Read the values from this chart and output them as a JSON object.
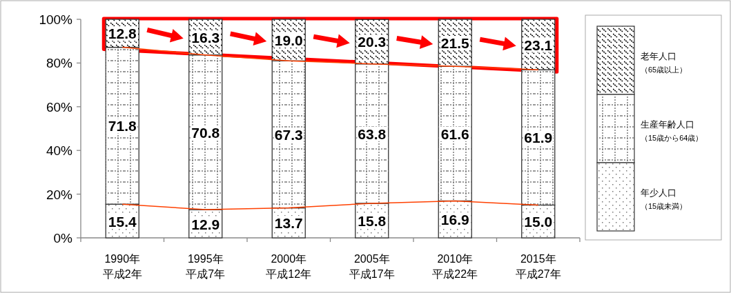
{
  "chart_data": {
    "type": "bar",
    "stacked": true,
    "categories": [
      "1990年平成2年",
      "1995年平成7年",
      "2000年平成12年",
      "2005年平成17年",
      "2010年平成22年",
      "2015年平成27年"
    ],
    "series": [
      {
        "name": "年少人口$_{（15歳未満）}$",
        "color": "#ffffff",
        "values": [
          15.4,
          12.9,
          13.7,
          15.8,
          16.9,
          15.0
        ],
        "value_labels": [
          "15.4",
          "12.9",
          "13.7",
          "15.8",
          "16.9",
          "15.0"
        ]
      },
      {
        "name": "生産年齢人口$_{（15歳から64歳）}$",
        "color": "#ffffff",
        "values": [
          71.8,
          70.8,
          67.3,
          63.8,
          61.6,
          61.9
        ],
        "value_labels": [
          "71.8",
          "70.8",
          "67.3",
          "63.8",
          "61.6",
          "61.9"
        ]
      },
      {
        "name": "老年人口$_{（65歳以上）}$",
        "color": "#ffffff",
        "values": [
          12.8,
          16.3,
          19.0,
          20.3,
          21.5,
          23.1
        ],
        "value_labels": [
          "12.8",
          "16.3",
          "19.0",
          "20.3",
          "21.5",
          "23.1"
        ]
      },
      {
        "type": "line",
        "color": "#ff4000",
        "values": [
          15.4,
          12.9,
          13.7,
          15.8,
          16.9,
          15.0
        ]
      },
      {
        "type": "line",
        "color": "#ff4000",
        "values": [
          87.2,
          83.7,
          81.0,
          79.6,
          78.5,
          76.9
        ]
      }
    ],
    "ylim": [
      0,
      100
    ],
    "yticks": [
      {
        "value": 0,
        "label": "0%"
      },
      {
        "value": 20,
        "label": "20%"
      },
      {
        "value": 40,
        "label": "40%"
      },
      {
        "value": 60,
        "label": "60%"
      },
      {
        "value": 80,
        "label": "80%"
      },
      {
        "value": 100,
        "label": "100%"
      }
    ],
    "grid": false,
    "legend": "right"
  }
}
